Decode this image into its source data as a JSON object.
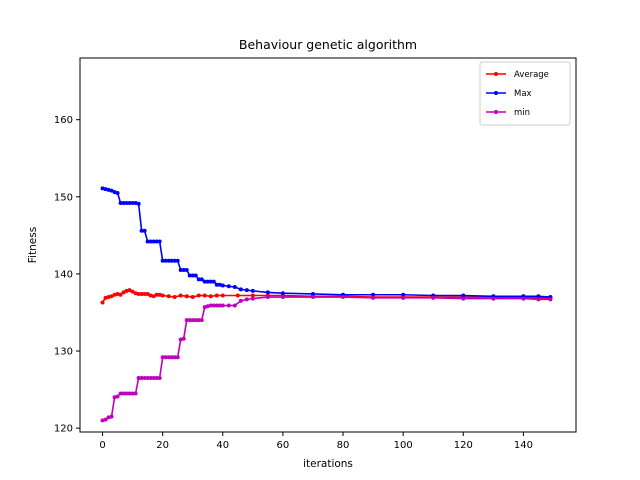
{
  "chart_data": {
    "type": "line",
    "title": "Behaviour genetic algorithm",
    "xlabel": "iterations",
    "ylabel": "Fitness",
    "xlim": [
      -7.5,
      157.5
    ],
    "ylim": [
      119.5,
      168
    ],
    "xticks": [
      0,
      20,
      40,
      60,
      80,
      100,
      120,
      140
    ],
    "yticks": [
      120,
      130,
      140,
      150,
      160
    ],
    "grid": false,
    "legend": {
      "position": "top-right"
    },
    "series": [
      {
        "name": "Average",
        "color": "#ff0000",
        "x": [
          0,
          1,
          2,
          3,
          4,
          5,
          6,
          7,
          8,
          9,
          10,
          11,
          12,
          13,
          14,
          15,
          16,
          17,
          18,
          19,
          20,
          22,
          24,
          26,
          28,
          30,
          32,
          34,
          36,
          38,
          40,
          45,
          50,
          55,
          60,
          70,
          80,
          90,
          100,
          110,
          120,
          130,
          140,
          145,
          149
        ],
        "y": [
          136.3,
          136.9,
          137.0,
          137.1,
          137.3,
          137.4,
          137.3,
          137.6,
          137.8,
          137.9,
          137.7,
          137.5,
          137.4,
          137.4,
          137.4,
          137.4,
          137.2,
          137.1,
          137.3,
          137.3,
          137.2,
          137.1,
          137.0,
          137.2,
          137.1,
          137.0,
          137.2,
          137.2,
          137.1,
          137.2,
          137.2,
          137.2,
          137.2,
          137.2,
          137.2,
          137.1,
          137.1,
          137.0,
          137.0,
          137.0,
          137.0,
          137.0,
          136.9,
          136.9,
          136.9
        ]
      },
      {
        "name": "Max",
        "color": "#0000ff",
        "x": [
          0,
          1,
          2,
          3,
          4,
          5,
          6,
          7,
          8,
          9,
          10,
          11,
          12,
          13,
          14,
          15,
          16,
          17,
          18,
          19,
          20,
          21,
          22,
          23,
          24,
          25,
          26,
          27,
          28,
          29,
          30,
          31,
          32,
          33,
          34,
          35,
          36,
          37,
          38,
          39,
          40,
          42,
          44,
          46,
          48,
          50,
          55,
          60,
          70,
          80,
          90,
          100,
          110,
          120,
          130,
          140,
          145,
          149
        ],
        "y": [
          151.1,
          151.0,
          150.9,
          150.8,
          150.6,
          150.5,
          149.2,
          149.2,
          149.2,
          149.2,
          149.2,
          149.2,
          149.1,
          145.6,
          145.6,
          144.2,
          144.2,
          144.2,
          144.2,
          144.2,
          141.7,
          141.7,
          141.7,
          141.7,
          141.7,
          141.7,
          140.5,
          140.5,
          140.5,
          139.8,
          139.8,
          139.8,
          139.3,
          139.3,
          139.0,
          139.0,
          139.0,
          139.0,
          138.6,
          138.6,
          138.5,
          138.4,
          138.3,
          138.0,
          137.9,
          137.8,
          137.6,
          137.5,
          137.4,
          137.3,
          137.3,
          137.3,
          137.2,
          137.2,
          137.1,
          137.1,
          137.1,
          137.0
        ]
      },
      {
        "name": "min",
        "color": "#bf00bf",
        "x": [
          0,
          1,
          2,
          3,
          4,
          5,
          6,
          7,
          8,
          9,
          10,
          11,
          12,
          13,
          14,
          15,
          16,
          17,
          18,
          19,
          20,
          21,
          22,
          23,
          24,
          25,
          26,
          27,
          28,
          29,
          30,
          31,
          32,
          33,
          34,
          35,
          36,
          37,
          38,
          39,
          40,
          42,
          44,
          46,
          48,
          50,
          55,
          60,
          70,
          80,
          90,
          100,
          110,
          120,
          130,
          140,
          145,
          149
        ],
        "y": [
          121.0,
          121.1,
          121.4,
          121.5,
          124.0,
          124.1,
          124.5,
          124.5,
          124.5,
          124.5,
          124.5,
          124.5,
          126.5,
          126.5,
          126.5,
          126.5,
          126.5,
          126.5,
          126.5,
          126.5,
          129.2,
          129.2,
          129.2,
          129.2,
          129.2,
          129.2,
          131.5,
          131.6,
          134.0,
          134.0,
          134.0,
          134.0,
          134.0,
          134.0,
          135.7,
          135.8,
          135.9,
          135.9,
          135.9,
          135.9,
          135.9,
          135.9,
          135.9,
          136.5,
          136.7,
          136.8,
          137.0,
          137.0,
          137.0,
          137.0,
          136.9,
          136.9,
          136.9,
          136.8,
          136.8,
          136.8,
          136.7,
          136.7
        ]
      }
    ]
  }
}
